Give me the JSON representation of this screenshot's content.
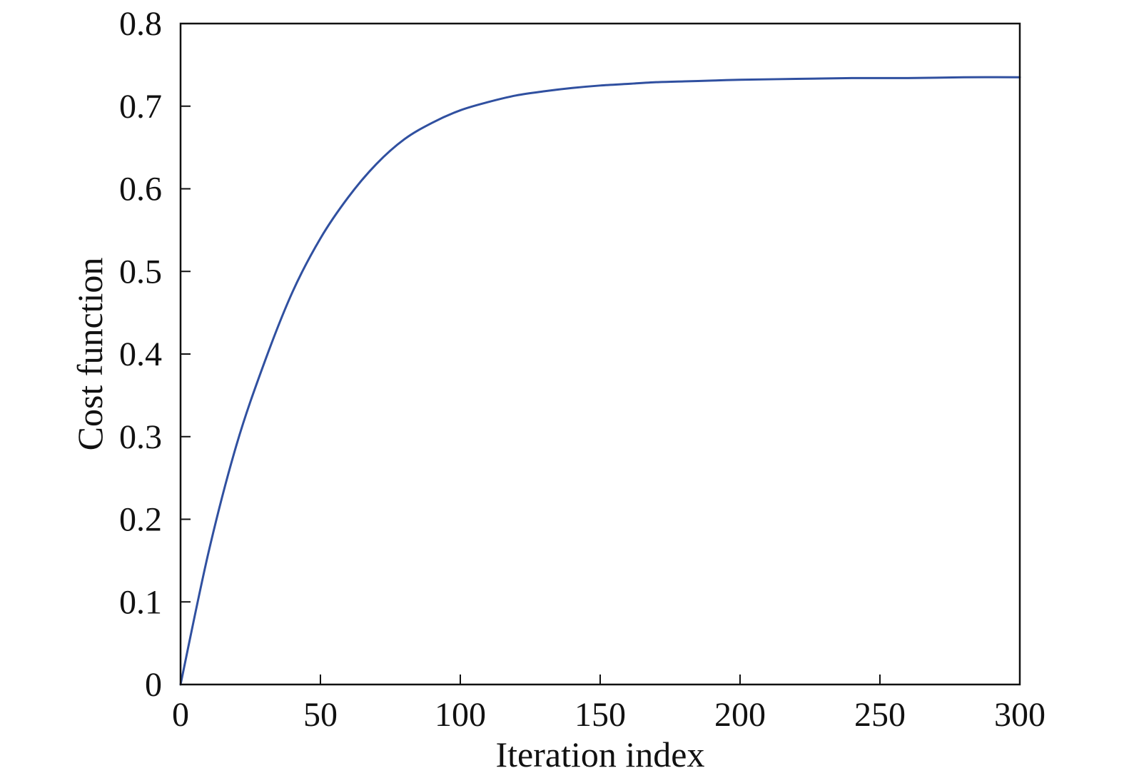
{
  "chart_data": {
    "type": "line",
    "title": "",
    "xlabel": "Iteration index",
    "ylabel": "Cost function",
    "xlim": [
      0,
      300
    ],
    "ylim": [
      0,
      0.8
    ],
    "x_ticks": [
      0,
      50,
      100,
      150,
      200,
      250,
      300
    ],
    "x_tick_labels": [
      "0",
      "50",
      "100",
      "150",
      "200",
      "250",
      "300"
    ],
    "y_ticks": [
      0,
      0.1,
      0.2,
      0.3,
      0.4,
      0.5,
      0.6,
      0.7,
      0.8
    ],
    "y_tick_labels": [
      "0",
      "0.1",
      "0.2",
      "0.3",
      "0.4",
      "0.5",
      "0.6",
      "0.7",
      "0.8"
    ],
    "grid": false,
    "series": [
      {
        "color": "#3050a0",
        "x": [
          0,
          10,
          20,
          30,
          40,
          50,
          60,
          70,
          80,
          90,
          100,
          110,
          120,
          130,
          140,
          150,
          160,
          170,
          180,
          190,
          200,
          220,
          240,
          260,
          280,
          300
        ],
        "y": [
          0,
          0.16,
          0.29,
          0.39,
          0.475,
          0.54,
          0.59,
          0.63,
          0.66,
          0.68,
          0.695,
          0.705,
          0.713,
          0.718,
          0.722,
          0.725,
          0.727,
          0.729,
          0.73,
          0.731,
          0.732,
          0.733,
          0.734,
          0.734,
          0.735,
          0.735
        ]
      }
    ]
  }
}
